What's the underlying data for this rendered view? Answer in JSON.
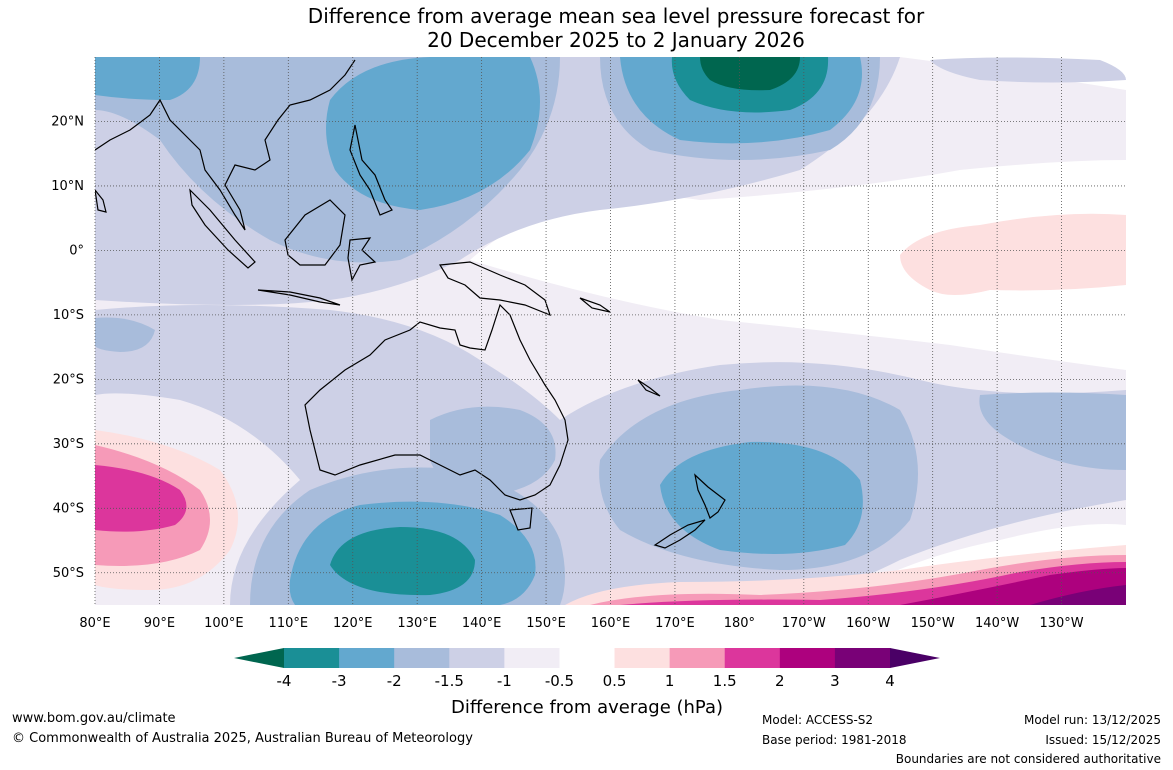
{
  "title": {
    "line1": "Difference from average mean sea level pressure forecast for",
    "line2": "20 December 2025 to 2 January 2026"
  },
  "map": {
    "lat_labels": [
      "20°N",
      "10°N",
      "0°",
      "10°S",
      "20°S",
      "30°S",
      "40°S",
      "50°S"
    ],
    "lon_labels": [
      "80°E",
      "90°E",
      "100°E",
      "110°E",
      "120°E",
      "130°E",
      "140°E",
      "150°E",
      "160°E",
      "170°E",
      "180°",
      "170°W",
      "160°W",
      "150°W",
      "140°W",
      "130°W"
    ],
    "lat_values": [
      20,
      10,
      0,
      -10,
      -20,
      -30,
      -40,
      -50
    ],
    "lon_values": [
      80,
      90,
      100,
      110,
      120,
      130,
      140,
      150,
      160,
      170,
      180,
      190,
      200,
      210,
      220,
      230
    ],
    "extent": {
      "lon_min": 80,
      "lon_max": 240,
      "lat_min": -55,
      "lat_max": 30
    }
  },
  "colorbar": {
    "ticks": [
      "-4",
      "-3",
      "-2",
      "-1.5",
      "-1",
      "-0.5",
      "0.5",
      "1",
      "1.5",
      "2",
      "3",
      "4"
    ],
    "colors": [
      "#00664f",
      "#1a8f96",
      "#63a8cf",
      "#a8bcdb",
      "#cdd0e6",
      "#f1edf5",
      "#ffffff",
      "#fde0e0",
      "#f69ab8",
      "#dc369c",
      "#ad017e",
      "#790177",
      "#4a0066"
    ],
    "title": "Difference from average (hPa)"
  },
  "footer": {
    "website": "www.bom.gov.au/climate",
    "copyright": "© Commonwealth of Australia 2025, Australian Bureau of Meteorology",
    "model": "Model: ACCESS-S2",
    "base_period": "Base period: 1981-2018",
    "model_run": "Model run: 13/12/2025",
    "issued": "Issued: 15/12/2025",
    "disclaimer": "Boundaries are not considered authoritative"
  }
}
